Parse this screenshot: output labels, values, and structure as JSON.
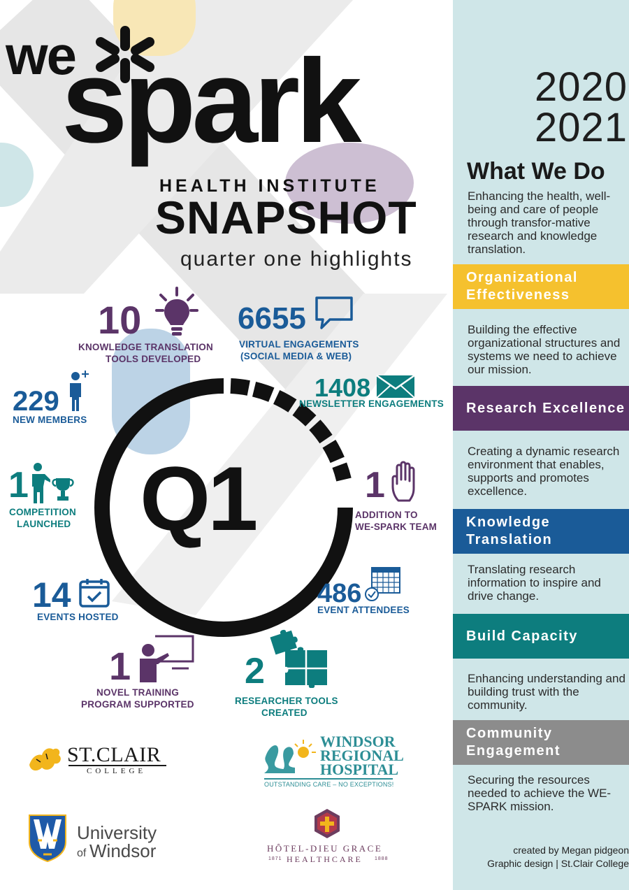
{
  "header": {
    "brand_we": "we",
    "brand_spark": "spark",
    "institute": "HEALTH INSTITUTE",
    "title": "SNAPSHOT",
    "subtitle": "quarter one highlights"
  },
  "panel": {
    "year_line1": "2020",
    "year_line2": "2021",
    "heading": "What We Do",
    "intro": "Enhancing the health, well-being and care of people through transfor-mative research and knowledge translation.",
    "sections": [
      {
        "title": "Organizational Effectiveness",
        "text": "Building the effective organizational structures and systems we need to achieve our mission.",
        "color": "#f5c12e"
      },
      {
        "title": "Research Excellence",
        "text": "Creating a dynamic research environment that enables, supports and promotes excellence.",
        "color": "#5b3468"
      },
      {
        "title": "Knowledge Translation",
        "text": "Translating research information to inspire and drive change.",
        "color": "#1a5b98"
      },
      {
        "title": "Build Capacity",
        "text": "Enhancing understanding and building trust with the community.",
        "color": "#0d7d7e"
      },
      {
        "title": "Community Engagement",
        "text": "Securing the resources needed to achieve the WE-SPARK mission.",
        "color": "#8c8c8c"
      }
    ],
    "credit_line1": "created by Megan pidgeon",
    "credit_line2": "Graphic design | St.Clair College"
  },
  "center": {
    "label": "Q1"
  },
  "stats": [
    {
      "value": "10",
      "label_line1": "KNOWLEDGE TRANSLATION",
      "label_line2": "TOOLS DEVELOPED",
      "icon": "lightbulb-icon"
    },
    {
      "value": "6655",
      "label_line1": "VIRTUAL ENGAGEMENTS",
      "label_line2": "(SOCIAL MEDIA & WEB)",
      "icon": "chat-bubble-icon"
    },
    {
      "value": "1408",
      "label_line1": "NEWSLETTER ENGAGEMENTS",
      "icon": "envelope-icon"
    },
    {
      "value": "229",
      "label_line1": "NEW MEMBERS",
      "icon": "person-plus-icon"
    },
    {
      "value": "1",
      "label_line1": "COMPETITION",
      "label_line2": "LAUNCHED",
      "icon": "trophy-icon"
    },
    {
      "value": "1",
      "label_line1": "ADDITION TO",
      "label_line2": "WE-SPARK TEAM",
      "icon": "raised-hand-icon"
    },
    {
      "value": "14",
      "label_line1": "EVENTS HOSTED",
      "icon": "calendar-check-icon"
    },
    {
      "value": "486",
      "label_line1": "EVENT ATTENDEES",
      "icon": "calendar-grid-icon"
    },
    {
      "value": "1",
      "label_line1": "NOVEL TRAINING",
      "label_line2": "PROGRAM SUPPORTED",
      "icon": "presenter-icon"
    },
    {
      "value": "2",
      "label_line1": "RESEARCHER TOOLS",
      "label_line2": "CREATED",
      "icon": "puzzle-icon"
    }
  ],
  "logos": {
    "stclair_name": "ST.CLAIR",
    "stclair_sub": "COLLEGE",
    "wrh_line1": "WINDSOR",
    "wrh_line2": "REGIONAL",
    "wrh_line3": "HOSPITAL",
    "wrh_tagline": "OUTSTANDING CARE – NO EXCEPTIONS!",
    "uw_line1": "University",
    "uw_line2_of": "of",
    "uw_line2": "Windsor",
    "hdg_line1": "HÔTEL-DIEU GRACE",
    "hdg_line2": "HEALTHCARE",
    "hdg_year_left": "1871",
    "hdg_year_right": "1888"
  },
  "colors": {
    "purple": "#5b3468",
    "blue": "#1a5b98",
    "teal": "#0d7d7e",
    "yellow": "#f5c12e",
    "gray": "#8c8c8c",
    "panel_bg": "#cfe6e8"
  }
}
